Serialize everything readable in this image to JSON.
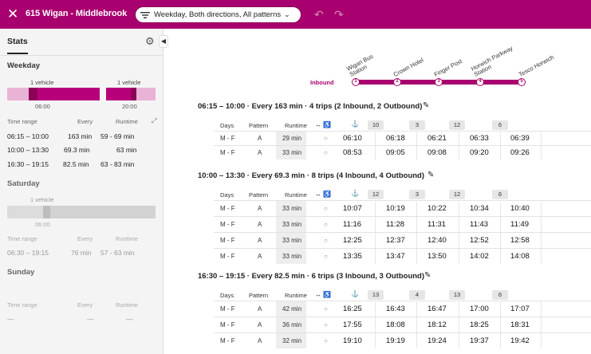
{
  "header": {
    "close_icon": "close-icon",
    "route_title": "615 Wigan - Middlebrook",
    "filter_label": "Weekday, Both directions, All patterns",
    "filter_icon": "filter-icon",
    "undo_icon": "undo-icon",
    "redo_icon": "redo-icon",
    "accent_color": "#a8006e"
  },
  "sidebar": {
    "title": "Stats",
    "settings_icon": "gear-icon",
    "collapse_icon": "chevron-left-icon",
    "weekday": {
      "heading": "Weekday",
      "vehicle_labels": [
        "1 vehicle",
        "1 vehicle"
      ],
      "ticks": [
        "06:00",
        "20:00"
      ],
      "stats_header": {
        "time_range": "Time range",
        "every": "Every",
        "runtime": "Runtime"
      },
      "rows": [
        {
          "range": "06:15 – 10:00",
          "every": "163 min",
          "runtime": "59 - 69 min"
        },
        {
          "range": "10:00 – 13:30",
          "every": "69.3 min",
          "runtime": "63 min"
        },
        {
          "range": "16:30 – 19:15",
          "every": "82.5 min",
          "runtime": "63 - 83 min"
        }
      ]
    },
    "saturday": {
      "heading": "Saturday",
      "vehicle_label": "1 vehicle",
      "tick": "06:00",
      "stats_header": {
        "time_range": "Time range",
        "every": "Every",
        "runtime": "Runtime"
      },
      "rows": [
        {
          "range": "06:30 – 19:15",
          "every": "76 min",
          "runtime": "57 - 63 min"
        }
      ]
    },
    "sunday": {
      "heading": "Sunday",
      "stats_header": {
        "time_range": "Time range",
        "every": "Every",
        "runtime": "Runtime"
      },
      "rows": [
        {
          "range": "—",
          "every": "—",
          "runtime": "—"
        }
      ]
    }
  },
  "route_diagram": {
    "direction_label": "Inbound",
    "stops": [
      {
        "num": "1",
        "name_line1": "Wigan Bus",
        "name_line2": "Station"
      },
      {
        "num": "2",
        "name_line1": "Crown Hotel",
        "name_line2": ""
      },
      {
        "num": "3",
        "name_line1": "Finger Post",
        "name_line2": ""
      },
      {
        "num": "4",
        "name_line1": "Horwich Parkway",
        "name_line2": "Station"
      },
      {
        "num": "5",
        "name_line1": "Tesco Horwich",
        "name_line2": ""
      }
    ]
  },
  "table_columns": {
    "days": "Days",
    "pattern": "Pattern",
    "runtime": "Runtime"
  },
  "blocks": [
    {
      "title": "06:15 – 10:00 · Every 163 min · 4 trips (2 Inbound, 2 Outbound)",
      "badges": [
        "10",
        "3",
        "12",
        "6"
      ],
      "rows": [
        {
          "days": "M - F",
          "pattern": "A",
          "runtime": "29 min",
          "times": [
            "06:10",
            "06:18",
            "06:21",
            "06:33",
            "06:39"
          ]
        },
        {
          "days": "M - F",
          "pattern": "A",
          "runtime": "33 min",
          "times": [
            "08:53",
            "09:05",
            "09:08",
            "09:20",
            "09:26"
          ]
        }
      ]
    },
    {
      "title": "10:00 – 13:30 · Every 69.3 min · 8 trips (4 Inbound, 4 Outbound)",
      "badges": [
        "12",
        "3",
        "12",
        "6"
      ],
      "rows": [
        {
          "days": "M - F",
          "pattern": "A",
          "runtime": "33 min",
          "times": [
            "10:07",
            "10:19",
            "10:22",
            "10:34",
            "10:40"
          ]
        },
        {
          "days": "M - F",
          "pattern": "A",
          "runtime": "33 min",
          "times": [
            "11:16",
            "11:28",
            "11:31",
            "11:43",
            "11:49"
          ]
        },
        {
          "days": "M - F",
          "pattern": "A",
          "runtime": "33 min",
          "times": [
            "12:25",
            "12:37",
            "12:40",
            "12:52",
            "12:58"
          ]
        },
        {
          "days": "M - F",
          "pattern": "A",
          "runtime": "33 min",
          "times": [
            "13:35",
            "13:47",
            "13:50",
            "14:02",
            "14:08"
          ]
        }
      ]
    },
    {
      "title": "16:30 – 19:15 · Every 82.5 min · 6 trips (3 Inbound, 3 Outbound)",
      "badges": [
        "13",
        "4",
        "13",
        "6"
      ],
      "rows": [
        {
          "days": "M - F",
          "pattern": "A",
          "runtime": "42 min",
          "times": [
            "16:25",
            "16:43",
            "16:47",
            "17:00",
            "17:07"
          ]
        },
        {
          "days": "M - F",
          "pattern": "A",
          "runtime": "36 min",
          "times": [
            "17:55",
            "18:08",
            "18:12",
            "18:25",
            "18:31"
          ]
        },
        {
          "days": "M - F",
          "pattern": "A",
          "runtime": "32 min",
          "times": [
            "19:10",
            "19:19",
            "19:24",
            "19:37",
            "19:42"
          ]
        }
      ]
    }
  ]
}
